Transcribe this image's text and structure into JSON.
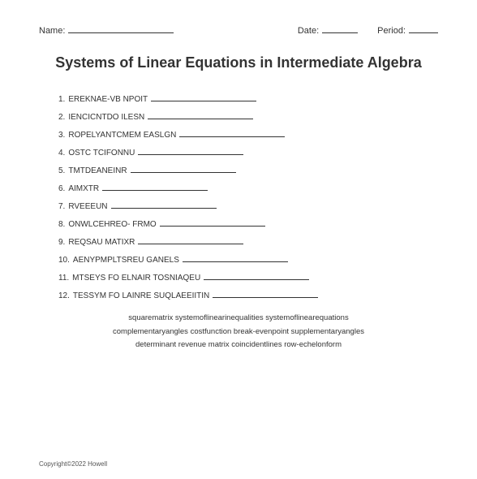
{
  "header": {
    "name_label": "Name:",
    "date_label": "Date:",
    "period_label": "Period:"
  },
  "title": "Systems of Linear Equations in Intermediate Algebra",
  "items": [
    {
      "num": "1.",
      "text": "EREKNAE-VB NPOIT",
      "line_width": 130
    },
    {
      "num": "2.",
      "text": "IENCICNTDO ILESN",
      "line_width": 130
    },
    {
      "num": "3.",
      "text": "ROPELYANTCMEM EASLGN",
      "line_width": 130
    },
    {
      "num": "4.",
      "text": "OSTC TCIFONNU",
      "line_width": 130
    },
    {
      "num": "5.",
      "text": "TMTDEANEINR",
      "line_width": 130
    },
    {
      "num": "6.",
      "text": "AIMXTR",
      "line_width": 130
    },
    {
      "num": "7.",
      "text": "RVEEEUN",
      "line_width": 130
    },
    {
      "num": "8.",
      "text": "ONWLCEHREO- FRMO",
      "line_width": 130
    },
    {
      "num": "9.",
      "text": "REQSAU MATIXR",
      "line_width": 130
    },
    {
      "num": "10.",
      "text": "AENYPMPLTSREU GANELS",
      "line_width": 130
    },
    {
      "num": "11.",
      "text": "MTSEYS FO ELNAIR TOSNIAQEU",
      "line_width": 130
    },
    {
      "num": "12.",
      "text": "TESSYM FO LAINRE SUQLAEEIITIN",
      "line_width": 130
    }
  ],
  "word_bank": {
    "line1": "squarematrix systemoflinearinequalities systemoflinearequations",
    "line2": "complementaryangles costfunction break-evenpoint supplementaryangles",
    "line3": "determinant revenue matrix coincidentlines row-echelonform"
  },
  "copyright": "Copyright©2022 Howell",
  "colors": {
    "background": "#ffffff",
    "text": "#333333",
    "line": "#333333"
  }
}
